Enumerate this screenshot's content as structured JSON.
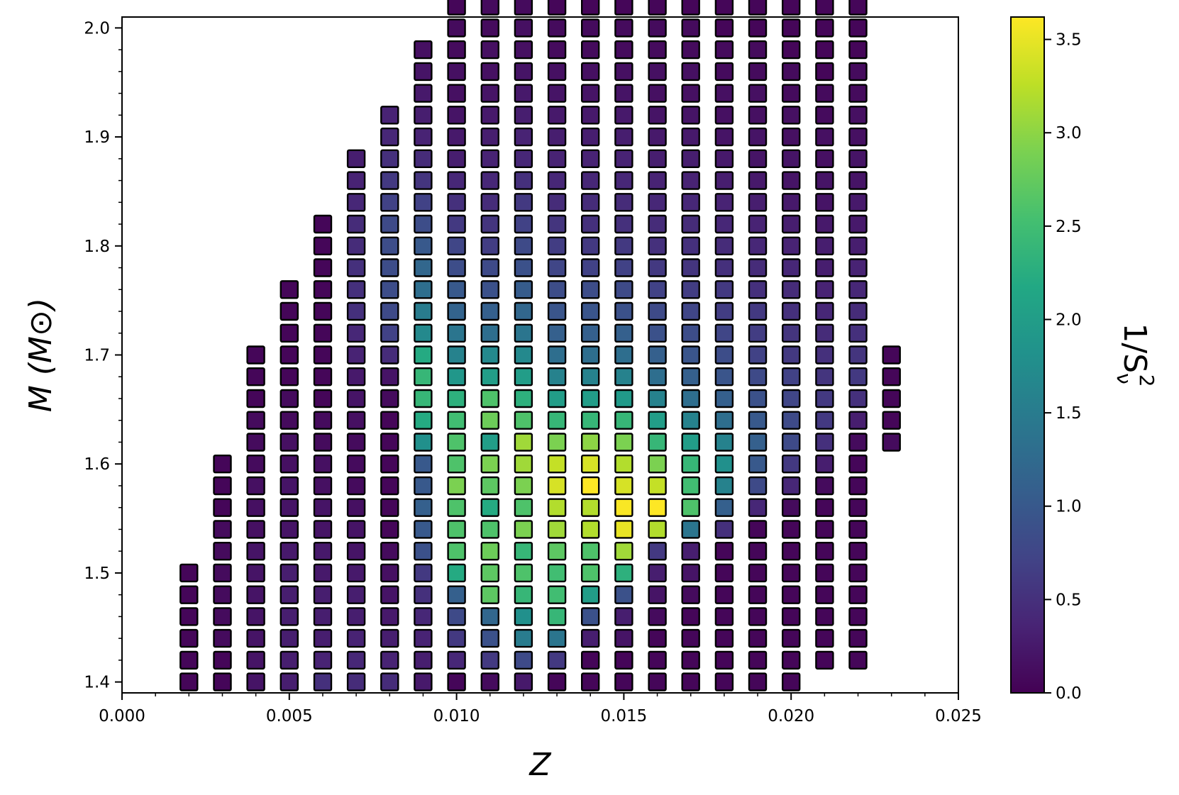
{
  "chart_data": {
    "type": "heatmap",
    "title": "",
    "xlabel": "Z",
    "ylabel": "M (M⊙)",
    "colorbar_label": {
      "base": "1/S",
      "superscript": "2",
      "subscript": "ν"
    },
    "xlim": [
      0.0,
      0.025
    ],
    "ylim": [
      1.39,
      2.01
    ],
    "clim": [
      0.0,
      3.62
    ],
    "colormap": "viridis",
    "marker": "square",
    "marker_edge_color": "#000000",
    "x_ticks": [
      {
        "value": 0.0,
        "label": "0.000"
      },
      {
        "value": 0.005,
        "label": "0.005"
      },
      {
        "value": 0.01,
        "label": "0.010"
      },
      {
        "value": 0.015,
        "label": "0.015"
      },
      {
        "value": 0.02,
        "label": "0.020"
      },
      {
        "value": 0.025,
        "label": "0.025"
      }
    ],
    "y_ticks": [
      {
        "value": 1.4,
        "label": "1.4"
      },
      {
        "value": 1.5,
        "label": "1.5"
      },
      {
        "value": 1.6,
        "label": "1.6"
      },
      {
        "value": 1.7,
        "label": "1.7"
      },
      {
        "value": 1.8,
        "label": "1.8"
      },
      {
        "value": 1.9,
        "label": "1.9"
      },
      {
        "value": 2.0,
        "label": "2.0"
      }
    ],
    "colorbar_ticks": [
      {
        "value": 0.0,
        "label": "0.0"
      },
      {
        "value": 0.5,
        "label": "0.5"
      },
      {
        "value": 1.0,
        "label": "1.0"
      },
      {
        "value": 1.5,
        "label": "1.5"
      },
      {
        "value": 2.0,
        "label": "2.0"
      },
      {
        "value": 2.5,
        "label": "2.5"
      },
      {
        "value": 3.0,
        "label": "3.0"
      },
      {
        "value": 3.5,
        "label": "3.5"
      }
    ],
    "columns": [
      {
        "z": 0.002,
        "m_start": 1.4,
        "values": [
          0.05,
          0.05,
          0.05,
          0.05,
          0.05,
          0.05
        ]
      },
      {
        "z": 0.003,
        "m_start": 1.4,
        "values": [
          0.05,
          0.05,
          0.1,
          0.1,
          0.1,
          0.1,
          0.1,
          0.1,
          0.05,
          0.05,
          0.05
        ]
      },
      {
        "z": 0.004,
        "m_start": 1.4,
        "values": [
          0.2,
          0.2,
          0.2,
          0.2,
          0.2,
          0.2,
          0.2,
          0.15,
          0.15,
          0.15,
          0.1,
          0.1,
          0.1,
          0.05,
          0.05,
          0.05
        ]
      },
      {
        "z": 0.005,
        "m_start": 1.4,
        "values": [
          0.3,
          0.3,
          0.3,
          0.3,
          0.3,
          0.3,
          0.25,
          0.2,
          0.2,
          0.2,
          0.15,
          0.15,
          0.1,
          0.1,
          0.05,
          0.05,
          0.05,
          0.05,
          0.05
        ]
      },
      {
        "z": 0.006,
        "m_start": 1.4,
        "values": [
          0.5,
          0.35,
          0.3,
          0.3,
          0.3,
          0.25,
          0.25,
          0.2,
          0.2,
          0.15,
          0.15,
          0.1,
          0.1,
          0.05,
          0.05,
          0.05,
          0.05,
          0.05,
          0.05,
          0.05,
          0.05,
          0.05
        ]
      },
      {
        "z": 0.007,
        "m_start": 1.4,
        "values": [
          0.45,
          0.4,
          0.35,
          0.3,
          0.3,
          0.25,
          0.2,
          0.2,
          0.15,
          0.1,
          0.1,
          0.1,
          0.15,
          0.2,
          0.25,
          0.35,
          0.4,
          0.5,
          0.5,
          0.5,
          0.45,
          0.45,
          0.4,
          0.35,
          0.3
        ]
      },
      {
        "z": 0.008,
        "m_start": 1.4,
        "values": [
          0.45,
          0.35,
          0.3,
          0.25,
          0.2,
          0.15,
          0.1,
          0.05,
          0.05,
          0.05,
          0.05,
          0.05,
          0.05,
          0.1,
          0.2,
          0.45,
          0.7,
          0.8,
          0.85,
          0.85,
          0.85,
          0.8,
          0.7,
          0.6,
          0.5,
          0.4,
          0.35
        ]
      },
      {
        "z": 0.009,
        "m_start": 1.4,
        "values": [
          0.25,
          0.3,
          0.35,
          0.4,
          0.5,
          0.6,
          0.9,
          1.0,
          1.1,
          1.0,
          1.0,
          1.8,
          2.2,
          2.4,
          2.4,
          2.2,
          1.7,
          1.5,
          1.3,
          1.2,
          1.0,
          0.85,
          0.7,
          0.55,
          0.45,
          0.35,
          0.3,
          0.25,
          0.2,
          0.15
        ]
      },
      {
        "z": 0.01,
        "m_start": 1.4,
        "values": [
          0.05,
          0.4,
          0.6,
          0.8,
          1.1,
          2.2,
          2.6,
          2.6,
          2.6,
          2.9,
          2.6,
          2.6,
          2.5,
          2.3,
          1.9,
          1.6,
          1.4,
          1.15,
          1.0,
          0.85,
          0.75,
          0.6,
          0.5,
          0.4,
          0.3,
          0.25,
          0.2,
          0.15,
          0.15,
          0.1,
          0.1,
          0.05,
          0.05
        ]
      },
      {
        "z": 0.011,
        "m_start": 1.4,
        "values": [
          0.1,
          0.6,
          0.9,
          1.2,
          2.7,
          2.7,
          2.8,
          2.6,
          2.2,
          2.7,
          2.9,
          2.0,
          2.8,
          2.6,
          2.0,
          1.7,
          1.3,
          1.1,
          0.9,
          0.8,
          0.65,
          0.55,
          0.45,
          0.4,
          0.35,
          0.3,
          0.25,
          0.2,
          0.15,
          0.15,
          0.1,
          0.1,
          0.05,
          0.05,
          0.05
        ]
      },
      {
        "z": 0.012,
        "m_start": 1.4,
        "values": [
          0.25,
          0.8,
          1.5,
          1.8,
          2.4,
          2.6,
          2.4,
          2.9,
          2.6,
          2.9,
          3.1,
          3.1,
          2.6,
          2.3,
          2.0,
          1.7,
          1.4,
          1.2,
          1.05,
          0.9,
          0.8,
          0.7,
          0.6,
          0.5,
          0.4,
          0.35,
          0.3,
          0.25,
          0.2,
          0.15,
          0.15,
          0.1,
          0.1,
          0.05,
          0.05,
          0.05
        ]
      },
      {
        "z": 0.013,
        "m_start": 1.4,
        "values": [
          0.05,
          0.6,
          1.4,
          2.4,
          2.5,
          2.5,
          2.7,
          3.1,
          3.2,
          3.4,
          3.3,
          2.9,
          2.4,
          2.0,
          1.6,
          1.3,
          1.1,
          0.95,
          0.85,
          0.75,
          0.65,
          0.55,
          0.45,
          0.4,
          0.35,
          0.3,
          0.25,
          0.2,
          0.15,
          0.1,
          0.1,
          0.05,
          0.05,
          0.05,
          0.05,
          0.05,
          0.05,
          0.05
        ]
      },
      {
        "z": 0.014,
        "m_start": 1.4,
        "values": [
          0.05,
          0.05,
          0.3,
          0.9,
          2.0,
          2.6,
          2.6,
          3.2,
          3.2,
          3.65,
          3.4,
          3.0,
          2.4,
          2.0,
          1.6,
          1.3,
          1.1,
          0.95,
          0.85,
          0.7,
          0.6,
          0.5,
          0.45,
          0.4,
          0.35,
          0.3,
          0.25,
          0.2,
          0.15,
          0.1,
          0.1,
          0.05,
          0.05,
          0.05,
          0.05,
          0.05,
          0.05,
          0.05,
          0.05
        ]
      },
      {
        "z": 0.015,
        "m_start": 1.4,
        "values": [
          0.05,
          0.05,
          0.2,
          0.3,
          0.9,
          2.3,
          3.1,
          3.5,
          3.6,
          3.4,
          3.2,
          2.9,
          2.4,
          1.95,
          1.6,
          1.3,
          1.1,
          0.9,
          0.8,
          0.7,
          0.6,
          0.5,
          0.45,
          0.4,
          0.35,
          0.3,
          0.25,
          0.2,
          0.15,
          0.1,
          0.1,
          0.05,
          0.05,
          0.05,
          0.05,
          0.05,
          0.05,
          0.05,
          0.05,
          0.05,
          0.05
        ]
      },
      {
        "z": 0.016,
        "m_start": 1.4,
        "values": [
          0.05,
          0.05,
          0.05,
          0.1,
          0.2,
          0.3,
          0.6,
          3.2,
          3.65,
          3.3,
          2.9,
          2.4,
          2.0,
          1.6,
          1.3,
          1.1,
          0.9,
          0.8,
          0.7,
          0.6,
          0.5,
          0.45,
          0.4,
          0.35,
          0.3,
          0.25,
          0.2,
          0.15,
          0.15,
          0.1,
          0.1,
          0.05,
          0.05,
          0.05,
          0.05,
          0.05,
          0.05,
          0.05,
          0.05,
          0.05,
          0.05,
          0.05
        ]
      },
      {
        "z": 0.017,
        "m_start": 1.4,
        "values": [
          0.05,
          0.05,
          0.05,
          0.05,
          0.1,
          0.2,
          0.3,
          1.4,
          2.6,
          2.5,
          2.4,
          2.0,
          1.6,
          1.3,
          1.1,
          0.95,
          0.85,
          0.75,
          0.65,
          0.55,
          0.5,
          0.45,
          0.4,
          0.35,
          0.3,
          0.25,
          0.2,
          0.15,
          0.15,
          0.1,
          0.1,
          0.05,
          0.05,
          0.05,
          0.05,
          0.05,
          0.05,
          0.05,
          0.05,
          0.05,
          0.05,
          0.05,
          0.05
        ]
      },
      {
        "z": 0.018,
        "m_start": 1.4,
        "values": [
          0.05,
          0.05,
          0.05,
          0.05,
          0.05,
          0.05,
          0.05,
          0.5,
          1.1,
          1.6,
          1.8,
          1.6,
          1.3,
          1.1,
          0.95,
          0.85,
          0.75,
          0.65,
          0.6,
          0.5,
          0.45,
          0.4,
          0.35,
          0.3,
          0.25,
          0.2,
          0.15,
          0.15,
          0.1,
          0.1,
          0.05,
          0.05,
          0.05,
          0.05,
          0.05,
          0.05,
          0.05,
          0.05,
          0.05,
          0.05,
          0.05,
          0.05,
          0.05,
          0.05,
          0.05,
          0.05,
          0.05,
          0.05
        ]
      },
      {
        "z": 0.019,
        "m_start": 1.4,
        "values": [
          0.05,
          0.05,
          0.05,
          0.05,
          0.05,
          0.05,
          0.05,
          0.05,
          0.4,
          0.8,
          1.0,
          1.1,
          1.0,
          0.9,
          0.8,
          0.7,
          0.65,
          0.6,
          0.5,
          0.45,
          0.4,
          0.35,
          0.3,
          0.25,
          0.2,
          0.2,
          0.15,
          0.15,
          0.1,
          0.1,
          0.05,
          0.05,
          0.05,
          0.05,
          0.05,
          0.05,
          0.05,
          0.05,
          0.05,
          0.05,
          0.05,
          0.05,
          0.05,
          0.05,
          0.05,
          0.05,
          0.05,
          0.05
        ]
      },
      {
        "z": 0.02,
        "m_start": 1.4,
        "values": [
          0.05,
          0.05,
          0.05,
          0.05,
          0.05,
          0.05,
          0.05,
          0.05,
          0.1,
          0.4,
          0.6,
          0.8,
          0.8,
          0.75,
          0.7,
          0.6,
          0.55,
          0.5,
          0.45,
          0.4,
          0.35,
          0.3,
          0.25,
          0.2,
          0.2,
          0.15,
          0.15,
          0.1,
          0.1,
          0.05,
          0.05,
          0.05,
          0.05,
          0.05,
          0.05,
          0.05,
          0.05,
          0.05,
          0.05,
          0.05,
          0.05,
          0.05,
          0.05,
          0.05,
          0.05,
          0.05,
          0.05,
          0.05
        ]
      },
      {
        "z": 0.021,
        "m_start": 1.42,
        "values": [
          0.05,
          0.05,
          0.05,
          0.05,
          0.05,
          0.05,
          0.05,
          0.05,
          0.1,
          0.3,
          0.5,
          0.6,
          0.6,
          0.55,
          0.5,
          0.45,
          0.4,
          0.35,
          0.3,
          0.3,
          0.25,
          0.2,
          0.2,
          0.15,
          0.15,
          0.1,
          0.1,
          0.05,
          0.05,
          0.05,
          0.05,
          0.05,
          0.05,
          0.05,
          0.05,
          0.05,
          0.05,
          0.05,
          0.05,
          0.05,
          0.05,
          0.05,
          0.05,
          0.05,
          0.05,
          0.05,
          0.05,
          0.05,
          0.05,
          0.05,
          0.05,
          0.05,
          0.05,
          0.05
        ]
      },
      {
        "z": 0.022,
        "m_start": 1.42,
        "values": [
          0.05,
          0.05,
          0.05,
          0.05,
          0.05,
          0.05,
          0.05,
          0.05,
          0.05,
          0.05,
          0.1,
          0.3,
          0.5,
          0.6,
          0.55,
          0.5,
          0.45,
          0.4,
          0.35,
          0.3,
          0.25,
          0.25,
          0.2,
          0.2,
          0.15,
          0.15,
          0.1,
          0.1,
          0.05,
          0.05,
          0.05,
          0.05,
          0.05
        ]
      },
      {
        "z": 0.023,
        "m_start": 1.62,
        "values": [
          0.1,
          0.05,
          0.05,
          0.05,
          0.05
        ]
      }
    ]
  }
}
